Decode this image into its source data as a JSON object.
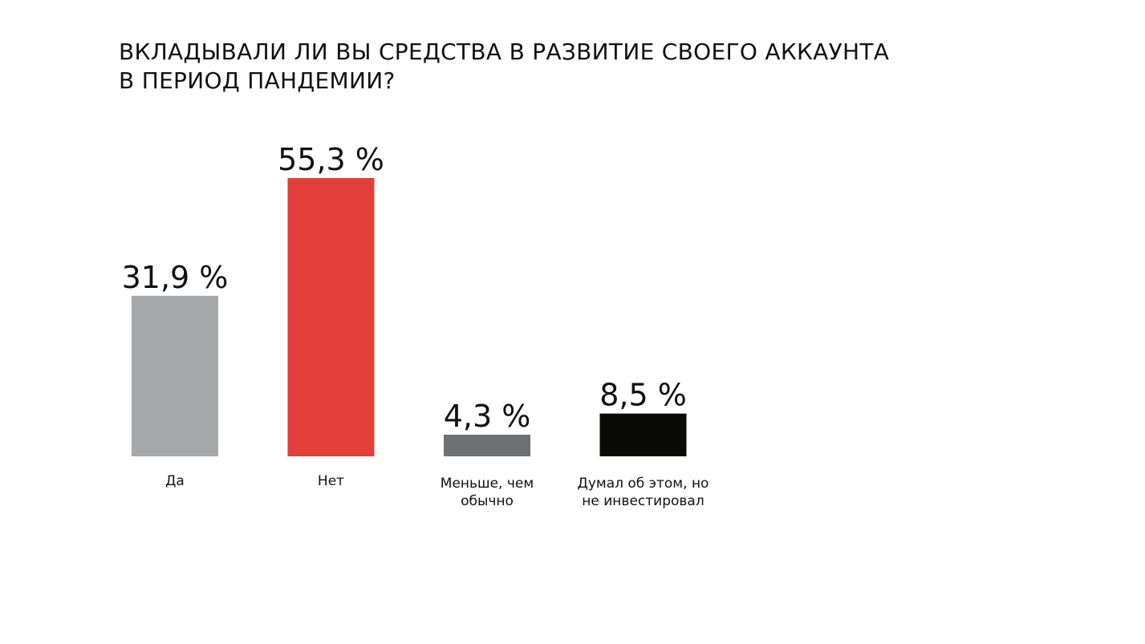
{
  "chart_data": {
    "type": "bar",
    "title_lines": [
      "ВКЛАДЫВАЛИ ЛИ ВЫ СРЕДСТВА В РАЗВИТИЕ СВОЕГО АККАУНТА",
      "В ПЕРИОД ПАНДЕМИИ?"
    ],
    "categories": [
      [
        "Да"
      ],
      [
        "Нет"
      ],
      [
        "Меньше, чем",
        "обычно"
      ],
      [
        "Думал об этом, но",
        "не инвестировал"
      ]
    ],
    "values": [
      31.9,
      55.3,
      4.3,
      8.5
    ],
    "value_labels": [
      "31,9 %",
      "55,3 %",
      "4,3 %",
      "8,5 %"
    ],
    "colors": [
      "#a6a8a9",
      "#e23e3a",
      "#6f7072",
      "#0a0a06"
    ],
    "unit": "%",
    "ylim": [
      0,
      55.3
    ],
    "grid": false,
    "legend": false
  }
}
